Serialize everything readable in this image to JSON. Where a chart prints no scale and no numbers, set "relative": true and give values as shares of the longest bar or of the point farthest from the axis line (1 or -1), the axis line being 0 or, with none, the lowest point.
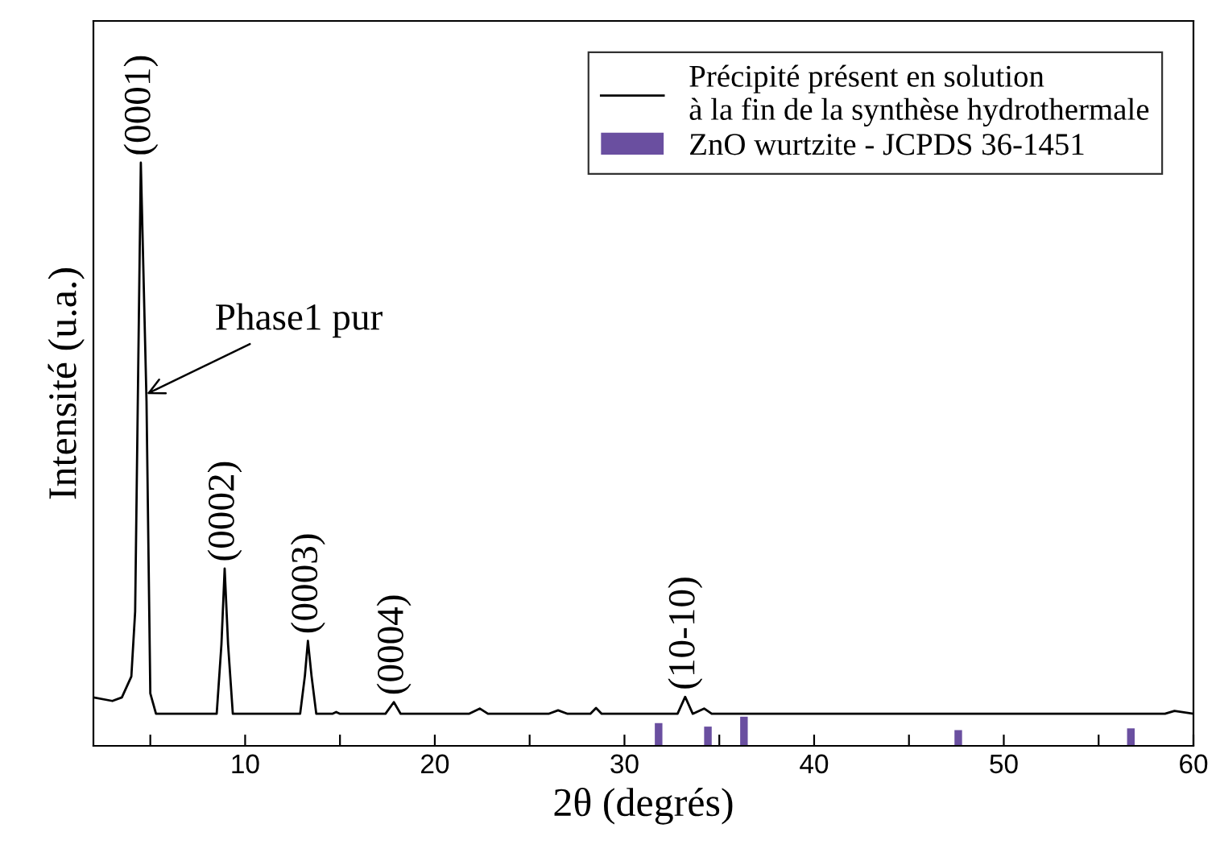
{
  "chart_data": {
    "type": "line",
    "relative": true,
    "xlabel": "2θ (degrés)",
    "ylabel": "Intensité (u.a.)",
    "xlim": [
      2,
      60
    ],
    "xticks": [
      {
        "value": 5,
        "label": null
      },
      10,
      {
        "value": 15,
        "label": null
      },
      20,
      {
        "value": 25,
        "label": null
      },
      30,
      {
        "value": 35,
        "label": null
      },
      40,
      {
        "value": 45,
        "label": null
      },
      50,
      {
        "value": 55,
        "label": null
      },
      60
    ],
    "legend": "top right",
    "grid": false,
    "tick_labels": "x",
    "series": [
      {
        "name": "Précipité présent en solution\nà la fin de la synthèse hydrothermale",
        "color": "#000000",
        "x": [
          2.0,
          3.0,
          3.5,
          4.0,
          4.2,
          4.5,
          4.8,
          5.0,
          5.3,
          8.5,
          8.75,
          8.92,
          9.1,
          9.35,
          12.9,
          13.15,
          13.31,
          13.5,
          13.75,
          14.6,
          14.8,
          15.0,
          17.4,
          17.84,
          18.2,
          21.8,
          22.37,
          22.8,
          26.0,
          26.5,
          27.0,
          28.2,
          28.5,
          28.8,
          32.8,
          33.2,
          33.6,
          34.2,
          34.6,
          40,
          50,
          58.5,
          59.0,
          60.0
        ],
        "values": [
          0.083,
          0.077,
          0.083,
          0.119,
          0.23,
          1.0,
          0.59,
          0.09,
          0.055,
          0.055,
          0.174,
          0.304,
          0.174,
          0.055,
          0.055,
          0.12,
          0.18,
          0.12,
          0.055,
          0.055,
          0.058,
          0.055,
          0.055,
          0.075,
          0.055,
          0.055,
          0.064,
          0.055,
          0.055,
          0.061,
          0.055,
          0.055,
          0.065,
          0.055,
          0.055,
          0.084,
          0.055,
          0.064,
          0.055,
          0.055,
          0.055,
          0.055,
          0.06,
          0.055
        ]
      },
      {
        "name": "ZnO wurtzite - JCPDS 36-1451",
        "type": "bar",
        "color": "#6a4fa0",
        "x": [
          31.8,
          34.4,
          36.3,
          47.6,
          56.7
        ],
        "values": [
          0.039,
          0.033,
          0.05,
          0.027,
          0.03
        ]
      }
    ],
    "annotations": [
      {
        "text": "(0001)",
        "x": 4.5,
        "y": 1.0
      },
      {
        "text": "Phase1 pur",
        "x": 4.6,
        "y": 0.6
      },
      {
        "text": "(0002)",
        "x": 8.92,
        "y": 0.304
      },
      {
        "text": "(0003)",
        "x": 13.31,
        "y": 0.18
      },
      {
        "text": "(0004)",
        "x": 17.84,
        "y": 0.075
      },
      {
        "text": "(10-10)",
        "x": 33.2,
        "y": 0.084
      }
    ]
  }
}
